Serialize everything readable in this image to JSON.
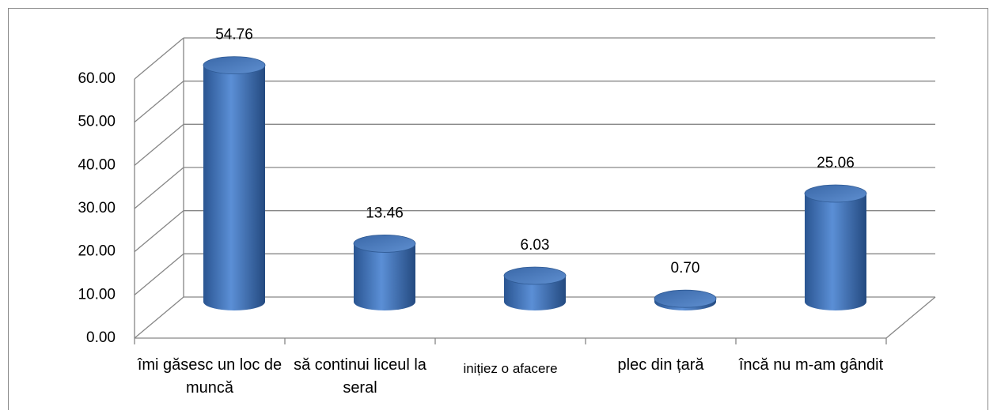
{
  "chart_data": {
    "type": "cylinder-bar",
    "categories": [
      "îmi găsesc un loc de muncă",
      "să continui liceul la seral",
      "inițiez o afacere",
      "plec din țară",
      "încă nu m-am gândit"
    ],
    "values": [
      54.76,
      13.46,
      6.03,
      0.7,
      25.06
    ],
    "value_labels": [
      "54.76",
      "13.46",
      "6.03",
      "0.70",
      "25.06"
    ],
    "color": "#4f81bd",
    "ylim": [
      0,
      60
    ],
    "yticks": [
      {
        "value": 0,
        "label": "0.00"
      },
      {
        "value": 10,
        "label": "10.00"
      },
      {
        "value": 20,
        "label": "20.00"
      },
      {
        "value": 30,
        "label": "30.00"
      },
      {
        "value": 40,
        "label": "40.00"
      },
      {
        "value": 50,
        "label": "50.00"
      },
      {
        "value": 60,
        "label": "60.00"
      }
    ],
    "grid": true
  }
}
